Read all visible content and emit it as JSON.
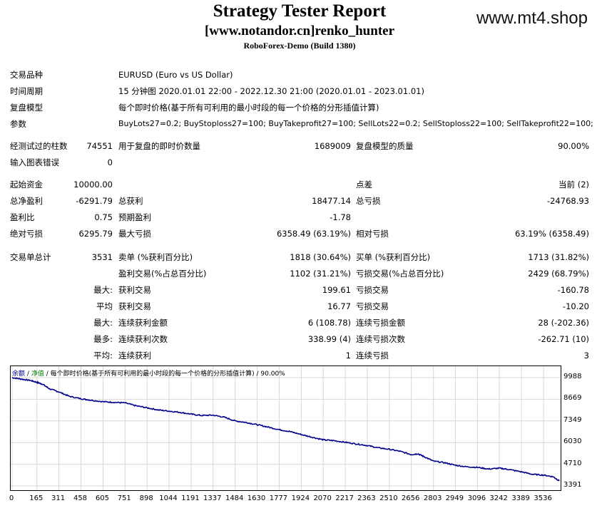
{
  "header": {
    "title": "Strategy Tester Report",
    "subtitle": "[www.notandor.cn]renko_hunter",
    "build": "RoboForex-Demo (Build 1380)",
    "watermark": "www.mt4.shop"
  },
  "info": {
    "symbol_label": "交易品种",
    "symbol_value": "EURUSD (Euro vs US Dollar)",
    "period_label": "时间周期",
    "period_value": "15 分钟图 2020.01.01 22:00 - 2022.12.30 21:00 (2020.01.01 - 2023.01.01)",
    "model_label": "复盘模型",
    "model_value": "每个即时价格(基于所有可利用的最小时段的每一个价格的分形插值计算)",
    "params_label": "参数",
    "params_value": "BuyLots27=0.2; BuyStoploss27=100; BuyTakeprofit27=100; SellLots22=0.2; SellStoploss22=100; SellTakeprofit22=100;"
  },
  "stats": {
    "bars_label": "经测试过的柱数",
    "bars_value": "74551",
    "ticks_label": "用于复盘的即时价数量",
    "ticks_value": "1689009",
    "quality_label": "复盘模型的质量",
    "quality_value": "90.00%",
    "errors_label": "输入图表错误",
    "errors_value": "0",
    "deposit_label": "起始资金",
    "deposit_value": "10000.00",
    "spread_label": "点差",
    "spread_value": "当前 (2)",
    "net_label": "总净盈利",
    "net_value": "-6291.79",
    "gross_profit_label": "总获利",
    "gross_profit_value": "18477.14",
    "gross_loss_label": "总亏损",
    "gross_loss_value": "-24768.93",
    "pf_label": "盈利比",
    "pf_value": "0.75",
    "payoff_label": "预期盈利",
    "payoff_value": "-1.78",
    "abs_dd_label": "绝对亏损",
    "abs_dd_value": "6295.79",
    "max_dd_label": "最大亏损",
    "max_dd_value": "6358.49 (63.19%)",
    "rel_dd_label": "相对亏损",
    "rel_dd_value": "63.19% (6358.49)",
    "trades_label": "交易单总计",
    "trades_value": "3531",
    "short_label": "卖单 (%获利百分比)",
    "short_value": "1818 (30.64%)",
    "long_label": "买单 (%获利百分比)",
    "long_value": "1713 (31.82%)",
    "profit_trades_label": "盈利交易(%占总百分比)",
    "profit_trades_value": "1102 (31.21%)",
    "loss_trades_label": "亏损交易(%占总百分比)",
    "loss_trades_value": "2429 (68.79%)",
    "largest_prefix": "最大:",
    "largest_profit_label": "获利交易",
    "largest_profit_value": "199.61",
    "largest_loss_label": "亏损交易",
    "largest_loss_value": "-160.78",
    "average_prefix": "平均",
    "average_profit_label": "获利交易",
    "average_profit_value": "16.77",
    "average_loss_label": "亏损交易",
    "average_loss_value": "-10.20",
    "max_consec_prefix": "最大:",
    "max_consec_wins_label": "连续获利金额",
    "max_consec_wins_value": "6 (108.78)",
    "max_consec_losses_label": "连续亏损金额",
    "max_consec_losses_value": "28 (-202.36)",
    "maximal_prefix": "最多:",
    "maximal_wins_label": "连续获利次数",
    "maximal_wins_value": "338.99 (4)",
    "maximal_losses_label": "连续亏损次数",
    "maximal_losses_value": "-262.71 (10)",
    "avg_consec_prefix": "平均:",
    "avg_consec_wins_label": "连续获利",
    "avg_consec_wins_value": "1",
    "avg_consec_losses_label": "连续亏损",
    "avg_consec_losses_value": "3"
  },
  "chart_data": {
    "type": "line",
    "legend_balance": "余额",
    "legend_equity": "净值",
    "legend_sep": "/",
    "legend_model": "每个即时价格(基于所有可利用的最小时段的每一个价格的分形插值计算) / 90.00%",
    "color_balance": "#00008b",
    "color_equity": "#008000",
    "y_ticks": [
      "9988",
      "8669",
      "7349",
      "6030",
      "4710",
      "3391"
    ],
    "x_ticks": [
      "0",
      "165",
      "311",
      "458",
      "605",
      "751",
      "898",
      "1044",
      "1191",
      "1337",
      "1484",
      "1630",
      "1777",
      "1924",
      "2070",
      "2217",
      "2363",
      "2510",
      "2656",
      "2803",
      "2949",
      "3096",
      "3242",
      "3389",
      "3536"
    ],
    "ylim": [
      3391,
      9988
    ],
    "xlim": [
      0,
      3640
    ],
    "series": [
      {
        "name": "余额",
        "x": [
          0,
          60,
          120,
          165,
          200,
          250,
          311,
          380,
          458,
          520,
          605,
          680,
          751,
          820,
          898,
          970,
          1044,
          1120,
          1191,
          1260,
          1337,
          1410,
          1484,
          1560,
          1630,
          1700,
          1777,
          1850,
          1924,
          2000,
          2070,
          2140,
          2217,
          2290,
          2363,
          2430,
          2510,
          2580,
          2656,
          2700,
          2740,
          2803,
          2880,
          2949,
          3020,
          3096,
          3170,
          3242,
          3300,
          3389,
          3460,
          3536,
          3600,
          3640
        ],
        "y": [
          9988,
          9900,
          9820,
          9700,
          9600,
          9300,
          9120,
          8850,
          8700,
          8620,
          8520,
          8480,
          8450,
          8280,
          8150,
          8020,
          7950,
          7870,
          7760,
          7680,
          7700,
          7580,
          7350,
          7250,
          7120,
          6980,
          6820,
          6700,
          6520,
          6350,
          6200,
          6150,
          6050,
          5950,
          5850,
          5720,
          5620,
          5500,
          5300,
          5350,
          5180,
          4900,
          4800,
          4650,
          4560,
          4520,
          4420,
          4470,
          4400,
          4250,
          4100,
          4050,
          3950,
          3700
        ]
      }
    ]
  }
}
